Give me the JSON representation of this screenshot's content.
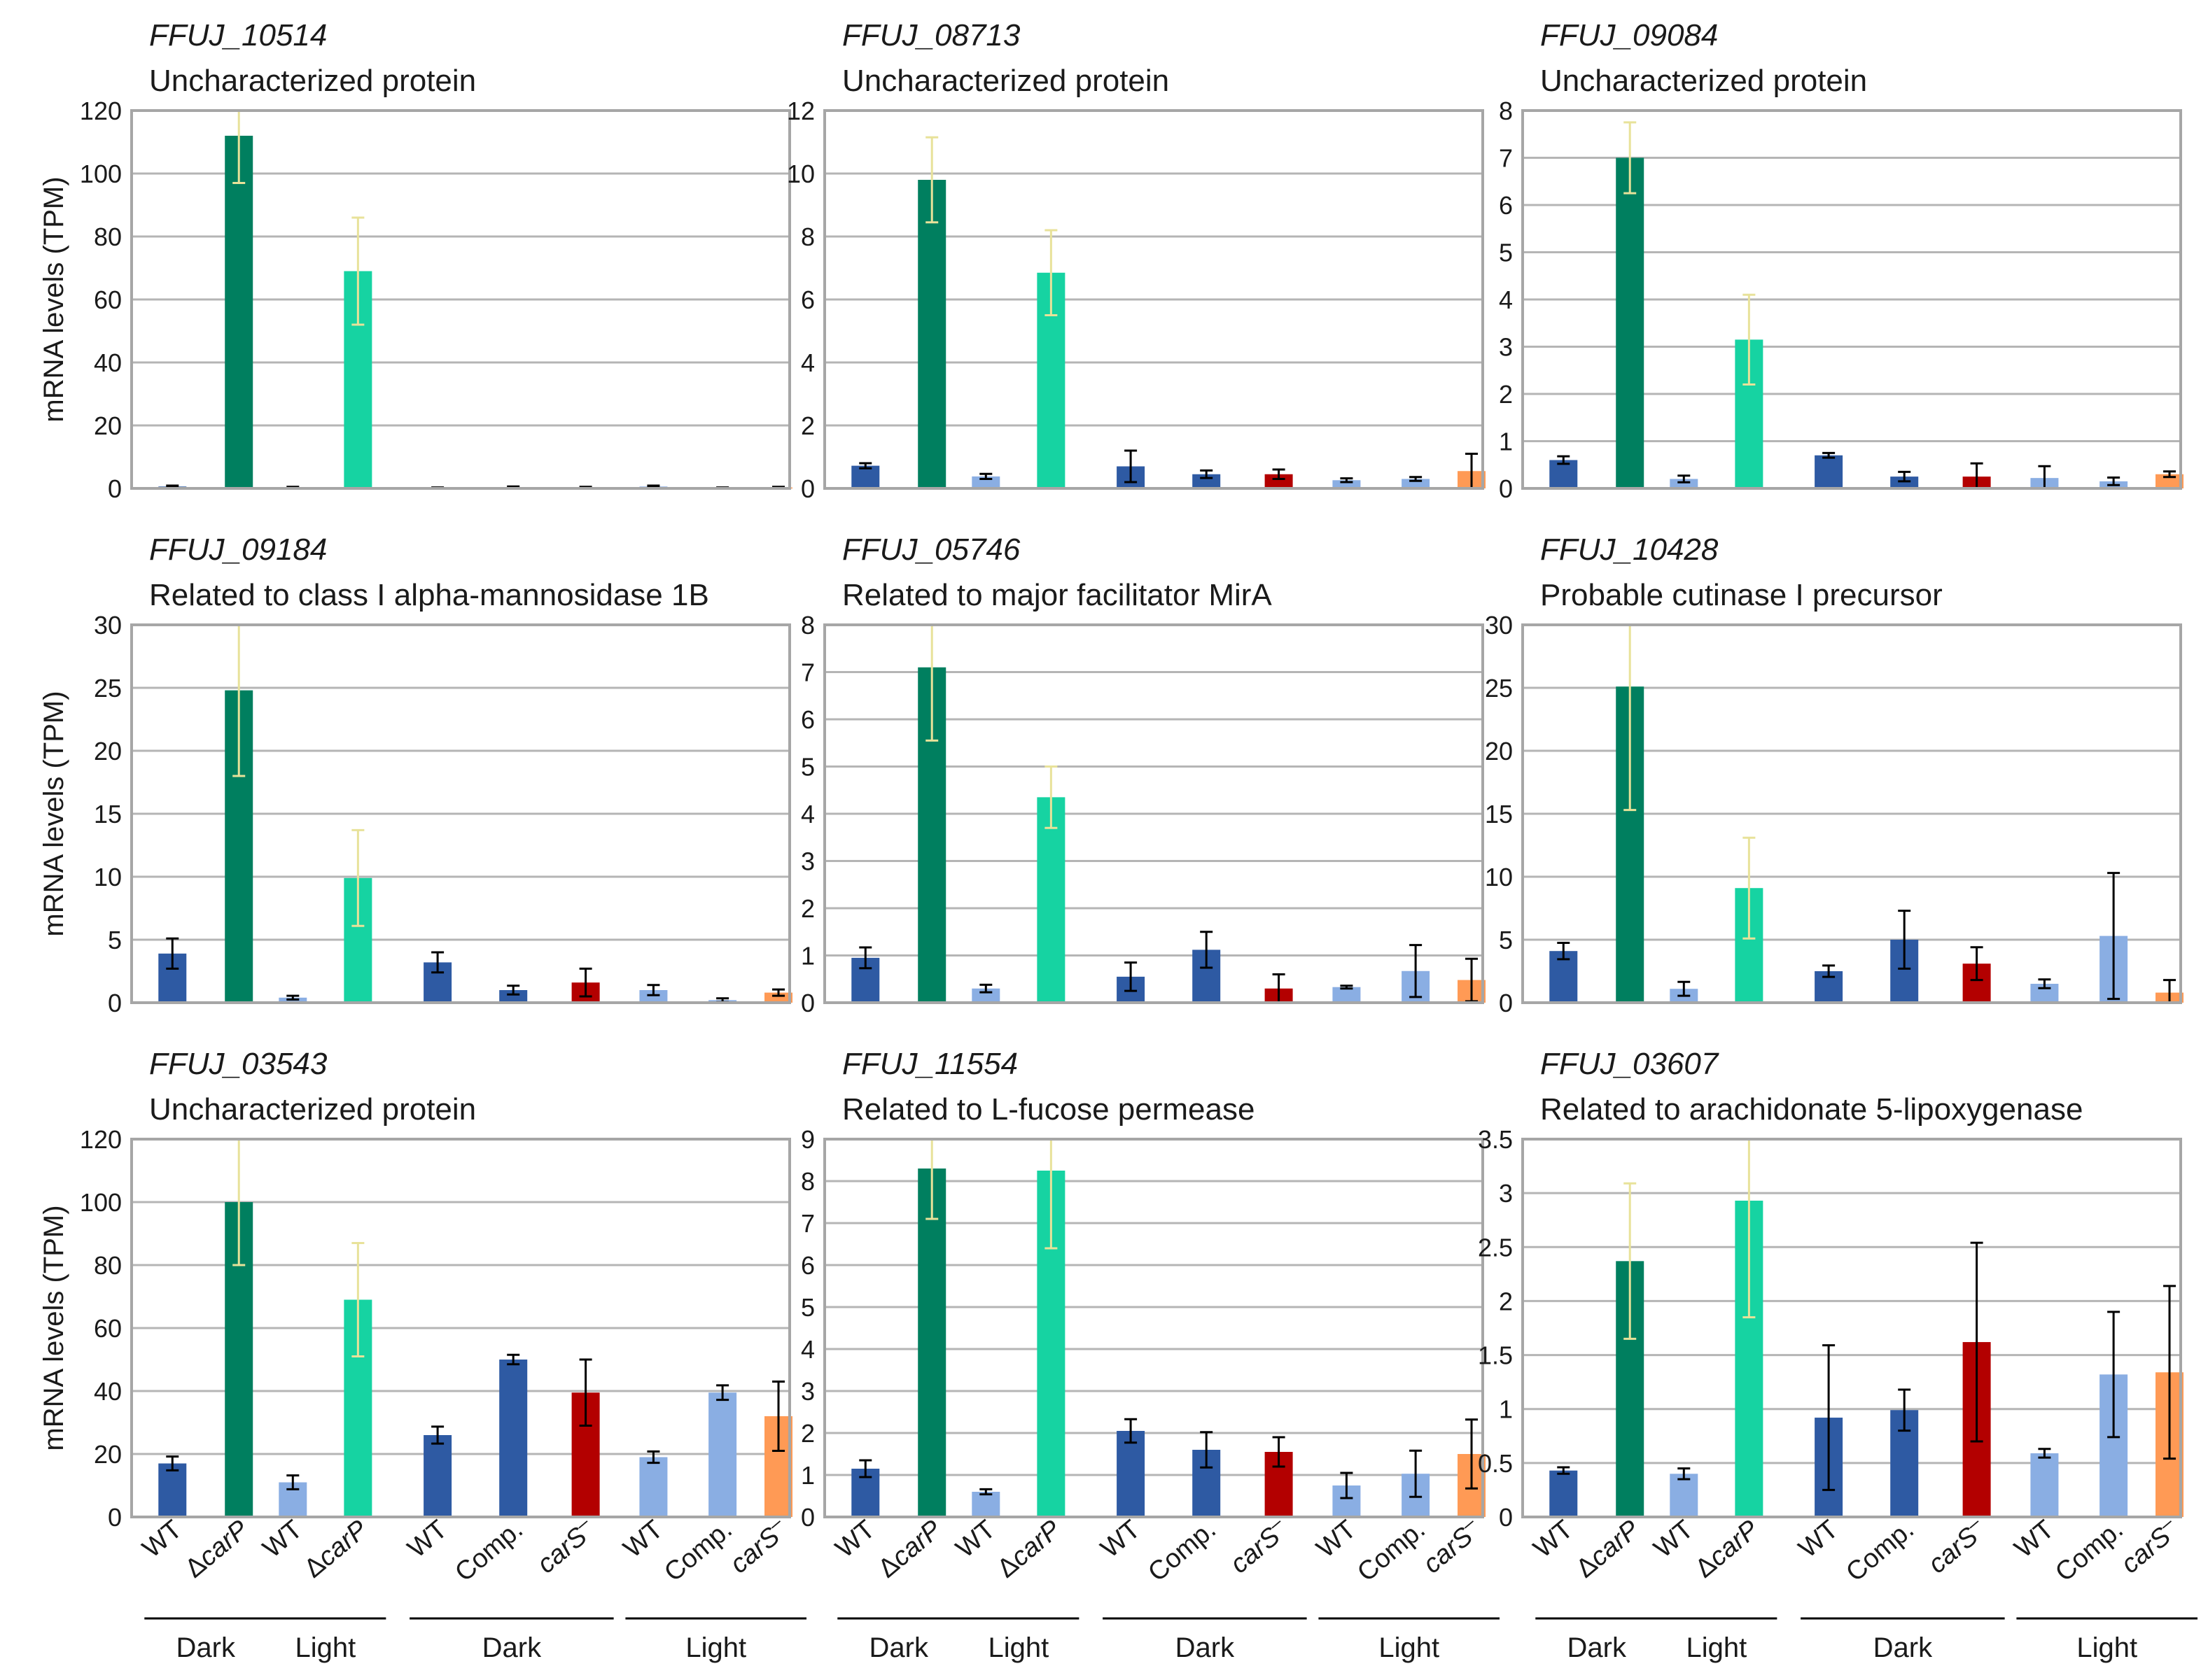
{
  "figure": {
    "y_axis_title": "mRNA levels (TPM)",
    "colors": {
      "wt_dark": "#2e5aa3",
      "carp_dark": "#007f5f",
      "wt_light": "#8aaee3",
      "carp_light": "#16d3a2",
      "cars_dark": "#b30000",
      "cars_light": "#ff9a55",
      "err_on_dark": "#e8e29a",
      "err_default": "#000000"
    }
  },
  "x_axis": {
    "categories": [
      {
        "key": "wt_dark_1",
        "label": "WT",
        "italic": false,
        "color_key": "wt_dark"
      },
      {
        "key": "carp_dark",
        "prefix": "Δ",
        "label": "carP",
        "italic": true,
        "color_key": "carp_dark"
      },
      {
        "key": "wt_light_1",
        "label": "WT",
        "italic": false,
        "color_key": "wt_light"
      },
      {
        "key": "carp_light",
        "prefix": "Δ",
        "label": "carP",
        "italic": true,
        "color_key": "carp_light"
      },
      {
        "key": "wt_dark_2",
        "label": "WT",
        "italic": false,
        "color_key": "wt_dark"
      },
      {
        "key": "comp_dark",
        "label": "Comp.",
        "italic": false,
        "color_key": "wt_dark"
      },
      {
        "key": "cars_dark",
        "label": "carS",
        "superscript": "–",
        "italic": true,
        "color_key": "cars_dark"
      },
      {
        "key": "wt_light_2",
        "label": "WT",
        "italic": false,
        "color_key": "wt_light"
      },
      {
        "key": "comp_light",
        "label": "Comp.",
        "italic": false,
        "color_key": "wt_light"
      },
      {
        "key": "cars_light",
        "label": "carS",
        "superscript": "–",
        "italic": true,
        "color_key": "cars_light"
      }
    ],
    "groups": [
      {
        "label": "Dark",
        "from": 0,
        "to": 1
      },
      {
        "label": "Light",
        "from": 2,
        "to": 3
      },
      {
        "label": "Dark",
        "from": 4,
        "to": 6
      },
      {
        "label": "Light",
        "from": 7,
        "to": 9
      }
    ]
  },
  "chart_data": [
    {
      "type": "bar",
      "gene": "FFUJ_10514",
      "title": "Uncharacterized protein",
      "ylabel": "mRNA levels (TPM)",
      "ylim": [
        0,
        120
      ],
      "yticks": [
        0,
        20,
        40,
        60,
        80,
        100,
        120
      ],
      "ytick_labels": [
        "0",
        "20",
        "40",
        "60",
        "80",
        "100",
        "120"
      ],
      "values": [
        0.6,
        112,
        0.3,
        69,
        0.2,
        0.4,
        0.3,
        0.6,
        0.2,
        0.3
      ],
      "errors": [
        0.3,
        15,
        0.2,
        17,
        0.1,
        0.2,
        0.2,
        0.3,
        0.1,
        0.2
      ]
    },
    {
      "type": "bar",
      "gene": "FFUJ_08713",
      "title": "Uncharacterized protein",
      "ylabel": "mRNA levels (TPM)",
      "ylim": [
        0,
        12
      ],
      "yticks": [
        0,
        2,
        4,
        6,
        8,
        10,
        12
      ],
      "ytick_labels": [
        "0",
        "2",
        "4",
        "6",
        "8",
        "10",
        "12"
      ],
      "values": [
        0.72,
        9.8,
        0.38,
        6.85,
        0.7,
        0.45,
        0.45,
        0.26,
        0.3,
        0.55
      ],
      "errors": [
        0.08,
        1.35,
        0.08,
        1.35,
        0.5,
        0.12,
        0.15,
        0.06,
        0.06,
        0.55
      ]
    },
    {
      "type": "bar",
      "gene": "FFUJ_09084",
      "title": "Uncharacterized protein",
      "ylabel": "mRNA levels (TPM)",
      "ylim": [
        0,
        8
      ],
      "yticks": [
        0,
        1,
        2,
        3,
        4,
        5,
        6,
        7,
        8
      ],
      "ytick_labels": [
        "0",
        "1",
        "2",
        "3",
        "4",
        "5",
        "6",
        "7",
        "8"
      ],
      "values": [
        0.6,
        7.0,
        0.2,
        3.15,
        0.7,
        0.25,
        0.25,
        0.22,
        0.15,
        0.3
      ],
      "errors": [
        0.08,
        0.75,
        0.07,
        0.95,
        0.05,
        0.1,
        0.28,
        0.25,
        0.08,
        0.06
      ]
    },
    {
      "type": "bar",
      "gene": "FFUJ_09184",
      "title": "Related to class I alpha-mannosidase 1B",
      "ylabel": "mRNA levels (TPM)",
      "ylim": [
        0,
        30
      ],
      "yticks": [
        0,
        5,
        10,
        15,
        20,
        25,
        30
      ],
      "ytick_labels": [
        "0",
        "5",
        "10",
        "15",
        "20",
        "25",
        "30"
      ],
      "values": [
        3.9,
        24.8,
        0.4,
        9.9,
        3.2,
        1.0,
        1.6,
        1.0,
        0.2,
        0.8
      ],
      "errors": [
        1.2,
        6.8,
        0.15,
        3.8,
        0.8,
        0.35,
        1.1,
        0.4,
        0.15,
        0.25
      ]
    },
    {
      "type": "bar",
      "gene": "FFUJ_05746",
      "title": "Related to major facilitator MirA",
      "ylabel": "mRNA levels (TPM)",
      "ylim": [
        0,
        8
      ],
      "yticks": [
        0,
        1,
        2,
        3,
        4,
        5,
        6,
        7,
        8
      ],
      "ytick_labels": [
        "0",
        "1",
        "2",
        "3",
        "4",
        "5",
        "6",
        "7",
        "8"
      ],
      "values": [
        0.95,
        7.1,
        0.3,
        4.35,
        0.55,
        1.12,
        0.3,
        0.33,
        0.67,
        0.48
      ],
      "errors": [
        0.22,
        1.55,
        0.08,
        0.65,
        0.3,
        0.38,
        0.3,
        0.03,
        0.55,
        0.45
      ]
    },
    {
      "type": "bar",
      "gene": "FFUJ_10428",
      "title": "Probable cutinase I precursor",
      "ylabel": "mRNA levels (TPM)",
      "ylim": [
        0,
        30
      ],
      "yticks": [
        0,
        5,
        10,
        15,
        20,
        25,
        30
      ],
      "ytick_labels": [
        "0",
        "5",
        "10",
        "15",
        "20",
        "25",
        "30"
      ],
      "values": [
        4.1,
        25.1,
        1.1,
        9.1,
        2.5,
        5.0,
        3.1,
        1.5,
        5.3,
        0.8
      ],
      "errors": [
        0.65,
        9.8,
        0.55,
        4.0,
        0.45,
        2.3,
        1.3,
        0.35,
        5.0,
        1.0
      ]
    },
    {
      "type": "bar",
      "gene": "FFUJ_03543",
      "title": "Uncharacterized protein",
      "ylabel": "mRNA levels (TPM)",
      "ylim": [
        0,
        120
      ],
      "yticks": [
        0,
        20,
        40,
        60,
        80,
        100,
        120
      ],
      "ytick_labels": [
        "0",
        "20",
        "40",
        "60",
        "80",
        "100",
        "120"
      ],
      "values": [
        17,
        100,
        11,
        69,
        26,
        50,
        39.5,
        19,
        39.5,
        32
      ],
      "errors": [
        2.2,
        20,
        2.2,
        18,
        2.7,
        1.5,
        10.5,
        1.8,
        2.3,
        11
      ]
    },
    {
      "type": "bar",
      "gene": "FFUJ_11554",
      "title": "Related to L-fucose permease",
      "ylabel": "mRNA levels (TPM)",
      "ylim": [
        0,
        9
      ],
      "yticks": [
        0,
        1,
        2,
        3,
        4,
        5,
        6,
        7,
        8,
        9
      ],
      "ytick_labels": [
        "0",
        "1",
        "2",
        "3",
        "4",
        "5",
        "6",
        "7",
        "8",
        "9"
      ],
      "values": [
        1.15,
        8.3,
        0.6,
        8.25,
        2.05,
        1.6,
        1.55,
        0.75,
        1.03,
        1.5
      ],
      "errors": [
        0.2,
        1.2,
        0.06,
        1.85,
        0.28,
        0.42,
        0.35,
        0.3,
        0.55,
        0.82
      ]
    },
    {
      "type": "bar",
      "gene": "FFUJ_03607",
      "title": "Related to arachidonate 5-lipoxygenase",
      "ylabel": "mRNA levels (TPM)",
      "ylim": [
        0,
        3.5
      ],
      "yticks": [
        0,
        0.5,
        1,
        1.5,
        2,
        2.5,
        3,
        3.5
      ],
      "ytick_labels": [
        "0",
        "0.5",
        "1",
        "1.5",
        "2",
        "2.5",
        "3",
        "3.5"
      ],
      "values": [
        0.43,
        2.37,
        0.4,
        2.93,
        0.92,
        0.99,
        1.62,
        0.59,
        1.32,
        1.34
      ],
      "errors": [
        0.03,
        0.72,
        0.05,
        1.08,
        0.67,
        0.19,
        0.92,
        0.04,
        0.58,
        0.8
      ]
    }
  ]
}
